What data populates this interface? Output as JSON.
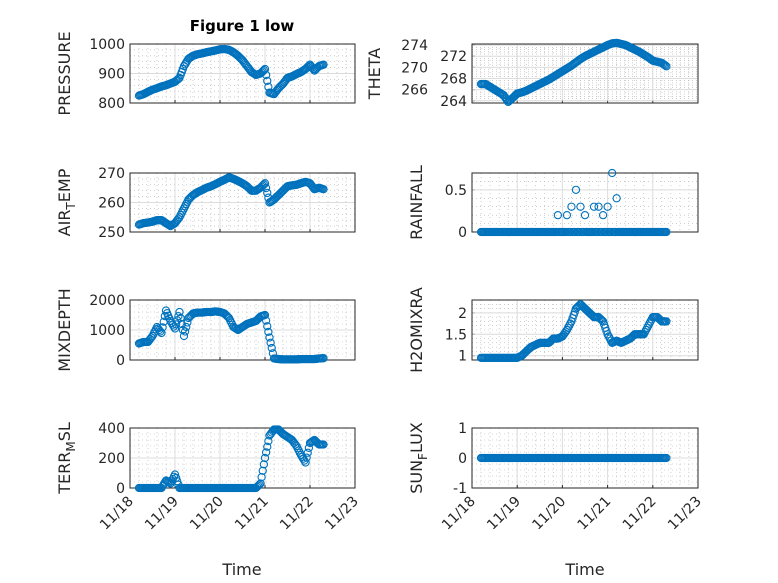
{
  "figure_title": "Figure 1 low",
  "marker_color": "#0072BD",
  "chart_data": {
    "type": "scatter",
    "title": "Figure 1 low",
    "xlabel": "Time",
    "x_ticks": [
      "11/18",
      "11/19",
      "11/20",
      "11/21",
      "11/22",
      "11/23"
    ],
    "x_units": "days since 11/18 00:00",
    "x_range": [
      0,
      5
    ],
    "x": [
      0.2,
      0.3,
      0.4,
      0.5,
      0.6,
      0.7,
      0.8,
      0.9,
      1.0,
      1.1,
      1.2,
      1.3,
      1.4,
      1.5,
      1.6,
      1.7,
      1.8,
      1.9,
      2.0,
      2.1,
      2.2,
      2.3,
      2.4,
      2.5,
      2.6,
      2.7,
      2.8,
      2.9,
      3.0,
      3.1,
      3.2,
      3.3,
      3.4,
      3.5,
      3.6,
      3.7,
      3.8,
      3.9,
      4.0,
      4.1,
      4.2,
      4.3
    ],
    "grid": "major and minor",
    "panels": [
      {
        "name": "pressure",
        "ylabel": "PRESSURE",
        "ylim": [
          800,
          1000
        ],
        "yticks": [
          800,
          900,
          1000
        ],
        "values": [
          825,
          830,
          838,
          845,
          850,
          856,
          860,
          866,
          872,
          885,
          925,
          950,
          960,
          965,
          968,
          972,
          975,
          978,
          982,
          983,
          980,
          972,
          960,
          945,
          925,
          905,
          895,
          900,
          915,
          835,
          830,
          850,
          865,
          885,
          890,
          898,
          905,
          915,
          930,
          910,
          925,
          930
        ]
      },
      {
        "name": "theta",
        "ylabel": "THETA",
        "ylim": [
          263.6,
          274.2
        ],
        "yticks": [
          264,
          266,
          268,
          270,
          272,
          274
        ],
        "values": [
          267,
          267,
          266.5,
          266,
          265.5,
          265,
          263.8,
          264.5,
          265.3,
          265.5,
          265.8,
          266.2,
          266.6,
          267,
          267.4,
          267.8,
          268.3,
          268.8,
          269.3,
          269.8,
          270.3,
          270.9,
          271.5,
          272,
          272.4,
          272.8,
          273.2,
          273.6,
          274,
          274.3,
          274.4,
          274.2,
          274,
          273.6,
          273.2,
          272.8,
          272.3,
          271.8,
          271.2,
          271,
          270.8,
          270.2
        ]
      },
      {
        "name": "air-temp",
        "ylabel": "AIR_TEMP",
        "ylim": [
          250,
          270
        ],
        "yticks": [
          250,
          260,
          270
        ],
        "values": [
          252.5,
          253,
          253.2,
          253.5,
          254,
          254,
          253,
          252,
          253,
          255,
          258,
          261,
          262.5,
          263.5,
          264.2,
          265,
          265.5,
          266.2,
          267,
          267.7,
          268.5,
          268,
          267.3,
          266.5,
          265.5,
          264,
          264,
          265,
          266.5,
          260,
          261,
          262.5,
          264,
          265.5,
          265.8,
          266,
          266.5,
          267,
          266.5,
          264.5,
          265,
          264.5
        ]
      },
      {
        "name": "rainfall",
        "ylabel": "RAINFALL",
        "ylim": [
          0,
          0.7
        ],
        "yticks": [
          0,
          0.5
        ],
        "values": [
          0,
          0,
          0,
          0,
          0,
          0,
          0,
          0,
          0,
          0,
          0,
          0,
          0,
          0,
          0,
          0,
          0,
          0.2,
          0,
          0.2,
          0.3,
          0.5,
          0.3,
          0.2,
          0,
          0.3,
          0.3,
          0.2,
          0.3,
          0.7,
          0.4,
          0,
          0,
          0,
          0,
          0,
          0,
          0,
          0,
          0,
          0,
          0
        ]
      },
      {
        "name": "mixdepth",
        "ylabel": "MIXDEPTH",
        "ylim": [
          0,
          2000
        ],
        "yticks": [
          0,
          1000,
          2000
        ],
        "values": [
          550,
          600,
          600,
          800,
          1100,
          900,
          1650,
          1300,
          1050,
          1600,
          800,
          1400,
          1550,
          1580,
          1580,
          1600,
          1600,
          1620,
          1600,
          1550,
          1400,
          1100,
          1000,
          1100,
          1200,
          1250,
          1300,
          1450,
          1500,
          750,
          50,
          30,
          20,
          20,
          20,
          20,
          30,
          30,
          30,
          30,
          50,
          60
        ]
      },
      {
        "name": "h2omixra",
        "ylabel": "H2OMIXRA",
        "ylim": [
          0.9,
          2.3
        ],
        "yticks": [
          1,
          1.5,
          2
        ],
        "values": [
          0.95,
          0.95,
          0.95,
          0.95,
          0.95,
          0.95,
          0.95,
          0.95,
          0.95,
          1.0,
          1.1,
          1.2,
          1.25,
          1.3,
          1.3,
          1.3,
          1.4,
          1.4,
          1.45,
          1.6,
          1.8,
          2.1,
          2.2,
          2.1,
          2.0,
          1.9,
          1.9,
          1.8,
          1.5,
          1.3,
          1.35,
          1.3,
          1.35,
          1.4,
          1.5,
          1.5,
          1.5,
          1.7,
          1.9,
          1.9,
          1.8,
          1.8
        ]
      },
      {
        "name": "terr-msl",
        "ylabel": "TERR_MSL",
        "ylim": [
          0,
          400
        ],
        "yticks": [
          0,
          200,
          400
        ],
        "values": [
          0,
          0,
          0,
          0,
          0,
          0,
          50,
          30,
          90,
          0,
          0,
          0,
          0,
          0,
          0,
          0,
          0,
          0,
          0,
          0,
          0,
          0,
          0,
          0,
          0,
          0,
          0,
          30,
          200,
          350,
          390,
          390,
          360,
          340,
          320,
          280,
          220,
          170,
          300,
          320,
          290,
          290
        ]
      },
      {
        "name": "sun-flux",
        "ylabel": "SUN_FLUX",
        "ylim": [
          -1,
          1
        ],
        "yticks": [
          -1,
          0,
          1
        ],
        "values": [
          0,
          0,
          0,
          0,
          0,
          0,
          0,
          0,
          0,
          0,
          0,
          0,
          0,
          0,
          0,
          0,
          0,
          0,
          0,
          0,
          0,
          0,
          0,
          0,
          0,
          0,
          0,
          0,
          0,
          0,
          0,
          0,
          0,
          0,
          0,
          0,
          0,
          0,
          0,
          0,
          0,
          0
        ]
      }
    ]
  }
}
